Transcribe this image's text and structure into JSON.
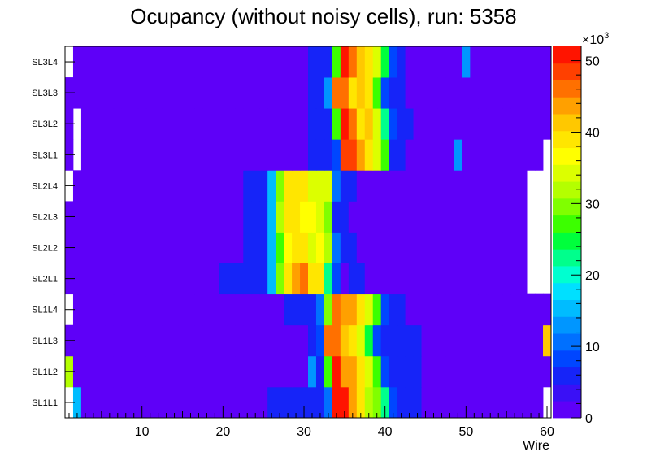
{
  "chart_data": {
    "type": "heatmap",
    "title": "Ocupancy (without noisy cells), run: 5358",
    "xlabel": "Wire",
    "ylabel": "",
    "x_range": [
      0.5,
      60.5
    ],
    "x_ticks": [
      10,
      20,
      30,
      40,
      50,
      60
    ],
    "y_categories": [
      "SL1L1",
      "SL1L2",
      "SL1L3",
      "SL1L4",
      "SL2L1",
      "SL2L2",
      "SL2L3",
      "SL2L4",
      "SL3L1",
      "SL3L2",
      "SL3L3",
      "SL3L4"
    ],
    "z_range": [
      0,
      52000
    ],
    "colorbar": {
      "ticks": [
        0,
        10,
        20,
        30,
        40,
        50
      ],
      "multiplier_base": "×10",
      "multiplier_exp": "3"
    },
    "palette": [
      "#5e00f8",
      "#3a10f6",
      "#1624f8",
      "#0046ff",
      "#0070ff",
      "#0096ff",
      "#00bcff",
      "#00e0ff",
      "#00ffd0",
      "#00ff8c",
      "#00ff3c",
      "#3cff00",
      "#80ff00",
      "#b4ff00",
      "#dcff00",
      "#ffff00",
      "#ffe600",
      "#ffc800",
      "#ffa000",
      "#ff7000",
      "#ff4000",
      "#ff1400"
    ],
    "values": [
      [
        0,
        15,
        2,
        2,
        2,
        2,
        2,
        2,
        2,
        2,
        2,
        2,
        2,
        2,
        2,
        2,
        2,
        2,
        2,
        2,
        2,
        2,
        2,
        2,
        2,
        5,
        5,
        5,
        5,
        5,
        5,
        5,
        10,
        50,
        50,
        44,
        38,
        32,
        30,
        22,
        9,
        5,
        5,
        5,
        2,
        2,
        2,
        2,
        2,
        2,
        2,
        2,
        2,
        2,
        2,
        2,
        2,
        2,
        2,
        0
      ],
      [
        32,
        2,
        2,
        2,
        2,
        2,
        2,
        2,
        2,
        2,
        2,
        2,
        2,
        2,
        2,
        2,
        2,
        2,
        2,
        2,
        2,
        2,
        2,
        2,
        2,
        2,
        2,
        2,
        2,
        2,
        14,
        5,
        28,
        50,
        44,
        44,
        38,
        35,
        28,
        9,
        5,
        5,
        5,
        5,
        2,
        2,
        2,
        2,
        2,
        2,
        2,
        2,
        2,
        2,
        2,
        2,
        2,
        2,
        2,
        2
      ],
      [
        2,
        2,
        2,
        2,
        2,
        2,
        2,
        2,
        2,
        2,
        2,
        2,
        2,
        2,
        2,
        2,
        2,
        2,
        2,
        2,
        2,
        2,
        2,
        2,
        2,
        2,
        2,
        2,
        2,
        2,
        5,
        8,
        47,
        47,
        42,
        38,
        35,
        24,
        9,
        5,
        5,
        5,
        5,
        5,
        2,
        2,
        2,
        2,
        2,
        2,
        2,
        2,
        2,
        2,
        2,
        2,
        2,
        2,
        2,
        42
      ],
      [
        0,
        2,
        2,
        2,
        2,
        2,
        2,
        2,
        2,
        2,
        2,
        2,
        2,
        2,
        2,
        2,
        2,
        2,
        2,
        2,
        2,
        2,
        2,
        2,
        2,
        2,
        2,
        5,
        5,
        5,
        5,
        10,
        30,
        46,
        44,
        44,
        38,
        35,
        28,
        9,
        5,
        5,
        2,
        2,
        2,
        2,
        2,
        2,
        2,
        2,
        2,
        2,
        2,
        2,
        2,
        2,
        2,
        2,
        2,
        2
      ],
      [
        2,
        2,
        2,
        2,
        2,
        2,
        2,
        2,
        2,
        2,
        2,
        2,
        2,
        2,
        2,
        2,
        2,
        2,
        2,
        5,
        5,
        5,
        5,
        5,
        5,
        16,
        30,
        40,
        44,
        46,
        38,
        38,
        22,
        9,
        2,
        5,
        5,
        2,
        2,
        2,
        2,
        2,
        2,
        2,
        2,
        2,
        2,
        2,
        2,
        2,
        2,
        2,
        2,
        2,
        2,
        2,
        2,
        0,
        0,
        0
      ],
      [
        2,
        2,
        2,
        2,
        2,
        2,
        2,
        2,
        2,
        2,
        2,
        2,
        2,
        2,
        2,
        2,
        2,
        2,
        2,
        2,
        2,
        2,
        5,
        5,
        5,
        16,
        28,
        36,
        40,
        40,
        34,
        36,
        32,
        10,
        5,
        5,
        2,
        2,
        2,
        2,
        2,
        2,
        2,
        2,
        2,
        2,
        2,
        2,
        2,
        2,
        2,
        2,
        2,
        2,
        2,
        2,
        2,
        0,
        0,
        0
      ],
      [
        2,
        2,
        2,
        2,
        2,
        2,
        2,
        2,
        2,
        2,
        2,
        2,
        2,
        2,
        2,
        2,
        2,
        2,
        2,
        2,
        2,
        2,
        5,
        5,
        5,
        16,
        32,
        38,
        40,
        36,
        36,
        34,
        30,
        5,
        5,
        2,
        2,
        2,
        2,
        2,
        2,
        2,
        2,
        2,
        2,
        2,
        2,
        2,
        2,
        2,
        2,
        2,
        2,
        2,
        2,
        2,
        2,
        0,
        0,
        0
      ],
      [
        0,
        2,
        2,
        2,
        2,
        2,
        2,
        2,
        2,
        2,
        2,
        2,
        2,
        2,
        2,
        2,
        2,
        2,
        2,
        2,
        2,
        2,
        5,
        5,
        5,
        16,
        30,
        38,
        40,
        40,
        34,
        34,
        34,
        10,
        5,
        5,
        2,
        2,
        2,
        2,
        2,
        2,
        2,
        2,
        2,
        2,
        2,
        2,
        2,
        2,
        2,
        2,
        2,
        2,
        2,
        2,
        2,
        0,
        0,
        0
      ],
      [
        2,
        0,
        2,
        2,
        2,
        2,
        2,
        2,
        2,
        2,
        2,
        2,
        2,
        2,
        2,
        2,
        2,
        2,
        2,
        2,
        2,
        2,
        2,
        2,
        2,
        2,
        2,
        2,
        2,
        2,
        5,
        5,
        5,
        8,
        48,
        48,
        44,
        40,
        34,
        28,
        5,
        5,
        2,
        2,
        2,
        2,
        2,
        2,
        14,
        2,
        2,
        2,
        2,
        2,
        2,
        2,
        2,
        2,
        2,
        0
      ],
      [
        2,
        0,
        2,
        2,
        2,
        2,
        2,
        2,
        2,
        2,
        2,
        2,
        2,
        2,
        2,
        2,
        2,
        2,
        2,
        2,
        2,
        2,
        2,
        2,
        2,
        2,
        2,
        2,
        2,
        2,
        5,
        5,
        5,
        28,
        50,
        46,
        38,
        42,
        34,
        22,
        9,
        5,
        5,
        2,
        2,
        2,
        2,
        2,
        2,
        2,
        2,
        2,
        2,
        2,
        2,
        2,
        2,
        2,
        2,
        2
      ],
      [
        2,
        2,
        2,
        2,
        2,
        2,
        2,
        2,
        2,
        2,
        2,
        2,
        2,
        2,
        2,
        2,
        2,
        2,
        2,
        2,
        2,
        2,
        2,
        2,
        2,
        2,
        2,
        2,
        2,
        2,
        5,
        5,
        14,
        46,
        46,
        40,
        42,
        40,
        28,
        9,
        5,
        5,
        2,
        2,
        2,
        2,
        2,
        2,
        2,
        2,
        2,
        2,
        2,
        2,
        2,
        2,
        2,
        2,
        2,
        2
      ],
      [
        0,
        2,
        2,
        2,
        2,
        2,
        2,
        2,
        2,
        2,
        2,
        2,
        2,
        2,
        2,
        2,
        2,
        2,
        2,
        2,
        2,
        2,
        2,
        2,
        2,
        2,
        2,
        2,
        2,
        2,
        5,
        5,
        5,
        28,
        50,
        46,
        42,
        38,
        34,
        24,
        9,
        5,
        2,
        2,
        2,
        2,
        2,
        2,
        2,
        14,
        2,
        2,
        2,
        2,
        2,
        2,
        2,
        2,
        2,
        2
      ]
    ]
  }
}
